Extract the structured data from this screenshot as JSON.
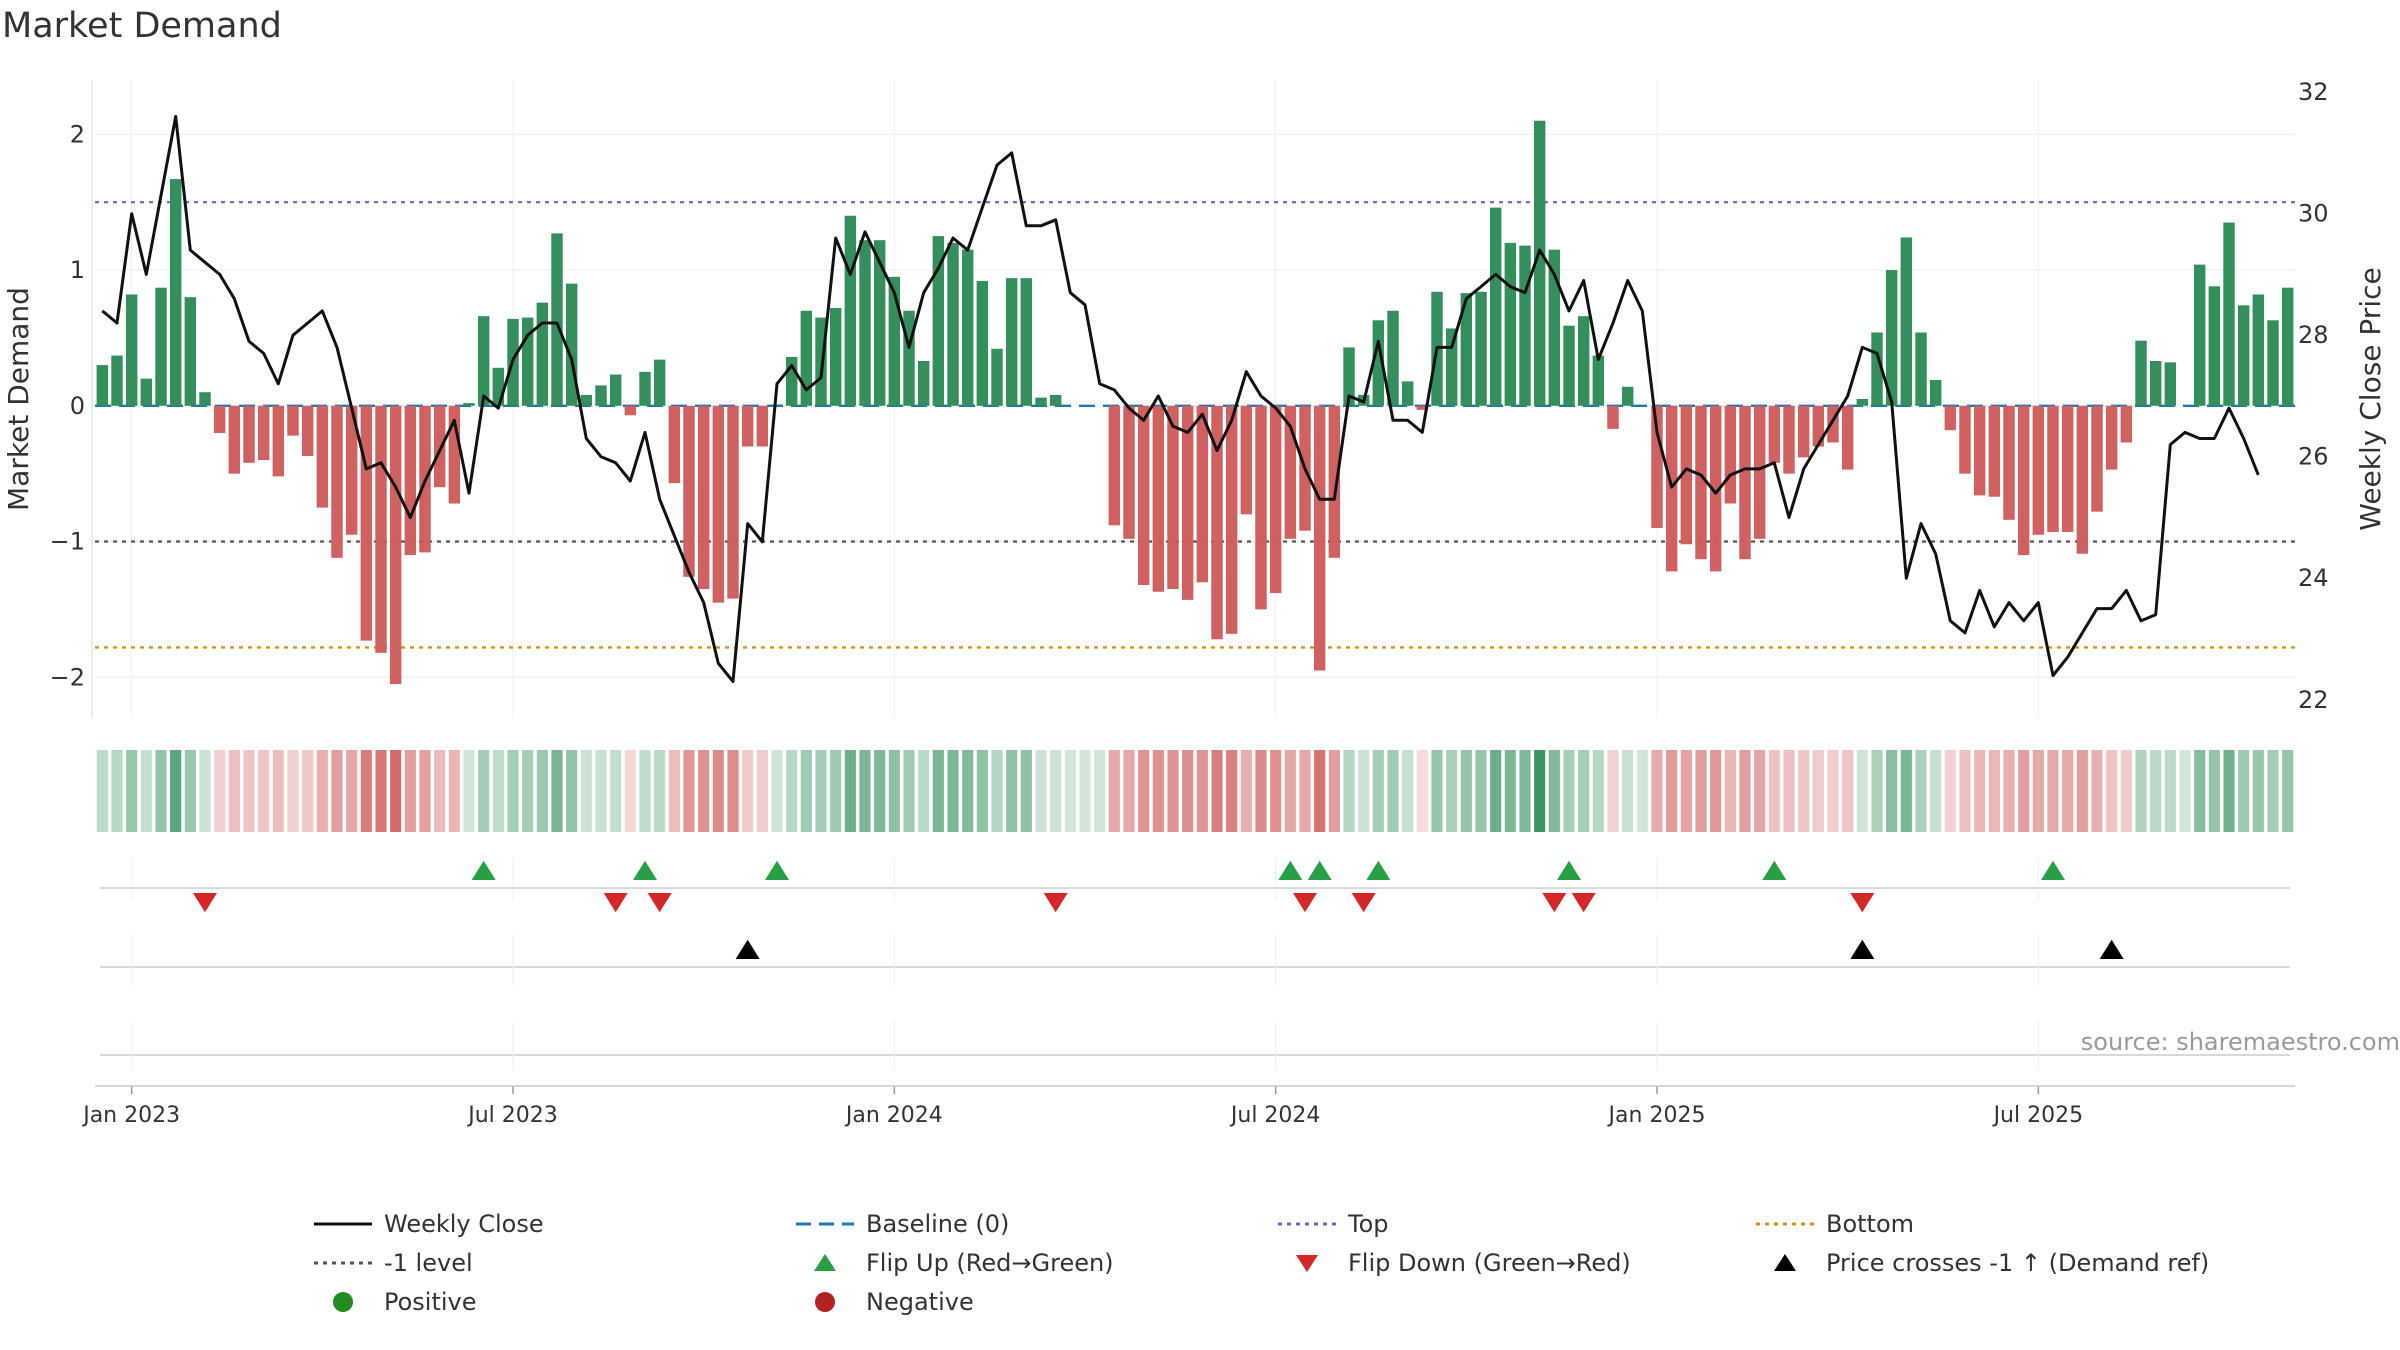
{
  "title": "Market Demand",
  "source": "source: sharemaestro.com",
  "colors": {
    "positive": "#2e8b57",
    "negative": "#cd5c5c",
    "close": "#111111",
    "baseline": "#1f77b4",
    "top": "#6b66c9",
    "minus_one": "#555555",
    "bottom": "#d4940f",
    "flip_up": "#27a045",
    "flip_down": "#d62728",
    "cross": "#000000",
    "legend_positive": "#228b22",
    "legend_negative": "#b22222"
  },
  "chart_data": {
    "type": "bar",
    "title": "Market Demand",
    "ylabel": "Market Demand",
    "y2label": "Weekly Close Price",
    "ylim": [
      -2.3,
      2.4
    ],
    "y2lim": [
      21.7,
      32.2
    ],
    "yticks": [
      2,
      1,
      0,
      -1,
      -2
    ],
    "ytick_labels": [
      "2",
      "1",
      "0",
      "−1",
      "−2"
    ],
    "y2ticks": [
      32,
      30,
      28,
      26,
      24,
      22
    ],
    "xticks": [
      2,
      28,
      54,
      80,
      106,
      132
    ],
    "xtick_labels": [
      "Jan 2023",
      "Jul 2023",
      "Jan 2024",
      "Jul 2024",
      "Jan 2025",
      "Jul 2025"
    ],
    "levels": {
      "top": 1.5,
      "minus_one": -1,
      "bottom": -1.78,
      "baseline": 0
    },
    "demand": [
      0.3,
      0.37,
      0.82,
      0.2,
      0.87,
      1.67,
      0.8,
      0.1,
      -0.2,
      -0.5,
      -0.42,
      -0.4,
      -0.52,
      -0.22,
      -0.37,
      -0.75,
      -1.12,
      -0.95,
      -1.73,
      -1.82,
      -2.05,
      -1.1,
      -1.08,
      -0.6,
      -0.72,
      0.02,
      0.66,
      0.28,
      0.64,
      0.65,
      0.76,
      1.27,
      0.9,
      0.08,
      0.15,
      0.23,
      -0.07,
      0.25,
      0.34,
      -0.57,
      -1.26,
      -1.35,
      -1.45,
      -1.42,
      -0.3,
      -0.3,
      0.01,
      0.36,
      0.7,
      0.65,
      0.72,
      1.4,
      1.22,
      1.22,
      0.95,
      0.7,
      0.33,
      1.25,
      1.2,
      1.15,
      0.92,
      0.42,
      0.94,
      0.94,
      0.06,
      0.08,
      0,
      0,
      0,
      -0.88,
      -0.98,
      -1.32,
      -1.37,
      -1.35,
      -1.43,
      -1.3,
      -1.72,
      -1.68,
      -0.8,
      -1.5,
      -1.38,
      -0.98,
      -0.92,
      -1.95,
      -1.12,
      0.43,
      0.08,
      0.63,
      0.7,
      0.18,
      -0.03,
      0.84,
      0.57,
      0.83,
      0.84,
      1.46,
      1.2,
      1.18,
      2.1,
      1.15,
      0.59,
      0.66,
      0.37,
      -0.17,
      0.14,
      0,
      -0.9,
      -1.22,
      -1.02,
      -1.13,
      -1.22,
      -0.72,
      -1.13,
      -0.98,
      -0.42,
      -0.5,
      -0.38,
      -0.3,
      -0.27,
      -0.47,
      0.05,
      0.54,
      1.0,
      1.24,
      0.54,
      0.19,
      -0.18,
      -0.5,
      -0.66,
      -0.67,
      -0.84,
      -1.1,
      -0.95,
      -0.93,
      -0.93,
      -1.09,
      -0.78,
      -0.47,
      -0.27,
      0.48,
      0.33,
      0.32,
      0,
      1.04,
      0.88,
      1.35,
      0.74,
      0.82,
      0.63,
      0.87
    ],
    "close": [
      28.4,
      28.2,
      30.0,
      29.0,
      30.3,
      31.6,
      29.4,
      29.2,
      29.0,
      28.6,
      27.9,
      27.7,
      27.2,
      28.0,
      28.2,
      28.4,
      27.8,
      26.8,
      25.8,
      25.9,
      25.5,
      25.0,
      25.6,
      26.1,
      26.6,
      25.4,
      27.0,
      26.8,
      27.6,
      28.0,
      28.2,
      28.2,
      27.6,
      26.3,
      26.0,
      25.9,
      25.6,
      26.4,
      25.3,
      24.7,
      24.1,
      23.6,
      22.6,
      22.3,
      24.9,
      24.6,
      27.2,
      27.5,
      27.1,
      27.3,
      29.6,
      29.0,
      29.7,
      29.2,
      28.7,
      27.8,
      28.7,
      29.1,
      29.6,
      29.4,
      30.1,
      30.8,
      31.0,
      29.8,
      29.8,
      29.9,
      28.7,
      28.5,
      27.2,
      27.1,
      26.8,
      26.6,
      27.0,
      26.5,
      26.4,
      26.7,
      26.1,
      26.6,
      27.4,
      27.0,
      26.8,
      26.5,
      25.8,
      25.3,
      25.3,
      27.0,
      26.9,
      27.9,
      26.6,
      26.6,
      26.4,
      27.8,
      27.8,
      28.6,
      28.8,
      29.0,
      28.8,
      28.7,
      29.4,
      29.0,
      28.4,
      28.9,
      27.6,
      28.2,
      28.9,
      28.4,
      26.4,
      25.5,
      25.8,
      25.7,
      25.4,
      25.7,
      25.8,
      25.8,
      25.9,
      25.0,
      25.8,
      26.2,
      26.6,
      27.0,
      27.8,
      27.7,
      26.9,
      24.0,
      24.9,
      24.4,
      23.3,
      23.1,
      23.8,
      23.2,
      23.6,
      23.3,
      23.6,
      22.4,
      22.7,
      23.1,
      23.5,
      23.5,
      23.8,
      23.3,
      23.4,
      26.2,
      26.4,
      26.3,
      26.3,
      26.8,
      26.3,
      25.7
    ],
    "flip_up": [
      26,
      37,
      46,
      81,
      83,
      87,
      100,
      114,
      133
    ],
    "flip_down": [
      7,
      35,
      38,
      65,
      82,
      86,
      99,
      101,
      120
    ],
    "price_cross_up": [
      44,
      120,
      137
    ]
  },
  "legend": [
    {
      "label": "Weekly Close",
      "symbol": "line",
      "color": "#111111"
    },
    {
      "label": "Baseline (0)",
      "symbol": "dash",
      "color": "#1f77b4"
    },
    {
      "label": "Top",
      "symbol": "dot",
      "color": "#6b66c9"
    },
    {
      "label": "Bottom",
      "symbol": "dot",
      "color": "#d4940f"
    },
    {
      "label": "-1 level",
      "symbol": "dot",
      "color": "#555555"
    },
    {
      "label": "Flip Up (Red→Green)",
      "symbol": "tri-up",
      "color": "#27a045"
    },
    {
      "label": "Flip Down (Green→Red)",
      "symbol": "tri-down",
      "color": "#d62728"
    },
    {
      "label": "Price crosses -1 ↑ (Demand ref)",
      "symbol": "tri-up",
      "color": "#000000"
    },
    {
      "label": "Positive",
      "symbol": "circle",
      "color": "#228b22"
    },
    {
      "label": "Negative",
      "symbol": "circle",
      "color": "#b22222"
    }
  ]
}
